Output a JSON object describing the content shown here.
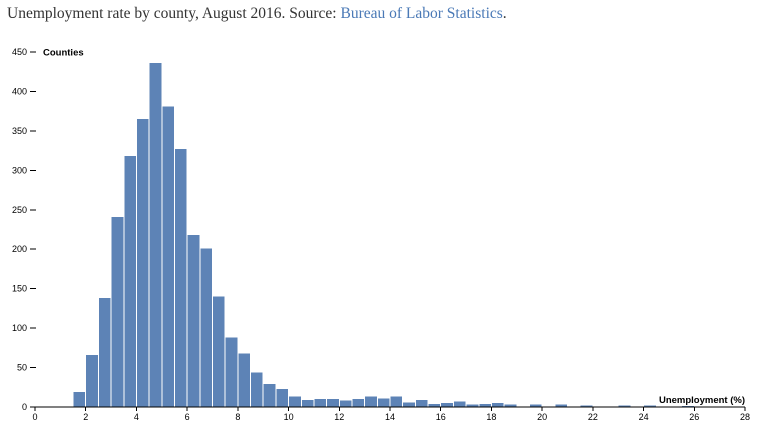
{
  "header": {
    "title_prefix": "Unemployment rate by county, August 2016. Source: ",
    "source_link_text": "Bureau of Labor Statistics",
    "title_suffix": "."
  },
  "colors": {
    "bar": "#5d83b6",
    "link": "#4a79b6",
    "title_text": "#333333",
    "axis": "#000000"
  },
  "chart_data": {
    "type": "bar",
    "subtype": "histogram",
    "title": "Unemployment rate by county, August 2016",
    "xlabel": "Unemployment (%)",
    "ylabel": "Counties",
    "xlim": [
      0,
      28
    ],
    "x_tick_step": 2,
    "ylim": [
      0,
      450
    ],
    "y_tick_step": 50,
    "grid": false,
    "legend": false,
    "bin_width": 0.5,
    "bins": [
      {
        "start": 1.5,
        "count": 19
      },
      {
        "start": 2.0,
        "count": 66
      },
      {
        "start": 2.5,
        "count": 138
      },
      {
        "start": 3.0,
        "count": 241
      },
      {
        "start": 3.5,
        "count": 318
      },
      {
        "start": 4.0,
        "count": 365
      },
      {
        "start": 4.5,
        "count": 436
      },
      {
        "start": 5.0,
        "count": 381
      },
      {
        "start": 5.5,
        "count": 327
      },
      {
        "start": 6.0,
        "count": 218
      },
      {
        "start": 6.5,
        "count": 201
      },
      {
        "start": 7.0,
        "count": 140
      },
      {
        "start": 7.5,
        "count": 88
      },
      {
        "start": 8.0,
        "count": 68
      },
      {
        "start": 8.5,
        "count": 44
      },
      {
        "start": 9.0,
        "count": 29
      },
      {
        "start": 9.5,
        "count": 23
      },
      {
        "start": 10.0,
        "count": 13
      },
      {
        "start": 10.5,
        "count": 9
      },
      {
        "start": 11.0,
        "count": 10
      },
      {
        "start": 11.5,
        "count": 10
      },
      {
        "start": 12.0,
        "count": 8
      },
      {
        "start": 12.5,
        "count": 10
      },
      {
        "start": 13.0,
        "count": 13
      },
      {
        "start": 13.5,
        "count": 11
      },
      {
        "start": 14.0,
        "count": 13
      },
      {
        "start": 14.5,
        "count": 6
      },
      {
        "start": 15.0,
        "count": 9
      },
      {
        "start": 15.5,
        "count": 4
      },
      {
        "start": 16.0,
        "count": 5
      },
      {
        "start": 16.5,
        "count": 7
      },
      {
        "start": 17.0,
        "count": 3
      },
      {
        "start": 17.5,
        "count": 4
      },
      {
        "start": 18.0,
        "count": 5
      },
      {
        "start": 18.5,
        "count": 3
      },
      {
        "start": 19.0,
        "count": 0
      },
      {
        "start": 19.5,
        "count": 3
      },
      {
        "start": 20.0,
        "count": 0
      },
      {
        "start": 20.5,
        "count": 3
      },
      {
        "start": 21.0,
        "count": 0
      },
      {
        "start": 21.5,
        "count": 2
      },
      {
        "start": 22.0,
        "count": 0
      },
      {
        "start": 22.5,
        "count": 0
      },
      {
        "start": 23.0,
        "count": 2
      },
      {
        "start": 23.5,
        "count": 0
      },
      {
        "start": 24.0,
        "count": 2
      },
      {
        "start": 24.5,
        "count": 0
      },
      {
        "start": 25.0,
        "count": 0
      },
      {
        "start": 25.5,
        "count": 1
      },
      {
        "start": 26.0,
        "count": 0
      },
      {
        "start": 26.5,
        "count": 0
      },
      {
        "start": 27.0,
        "count": 0
      },
      {
        "start": 27.5,
        "count": 0
      }
    ]
  }
}
